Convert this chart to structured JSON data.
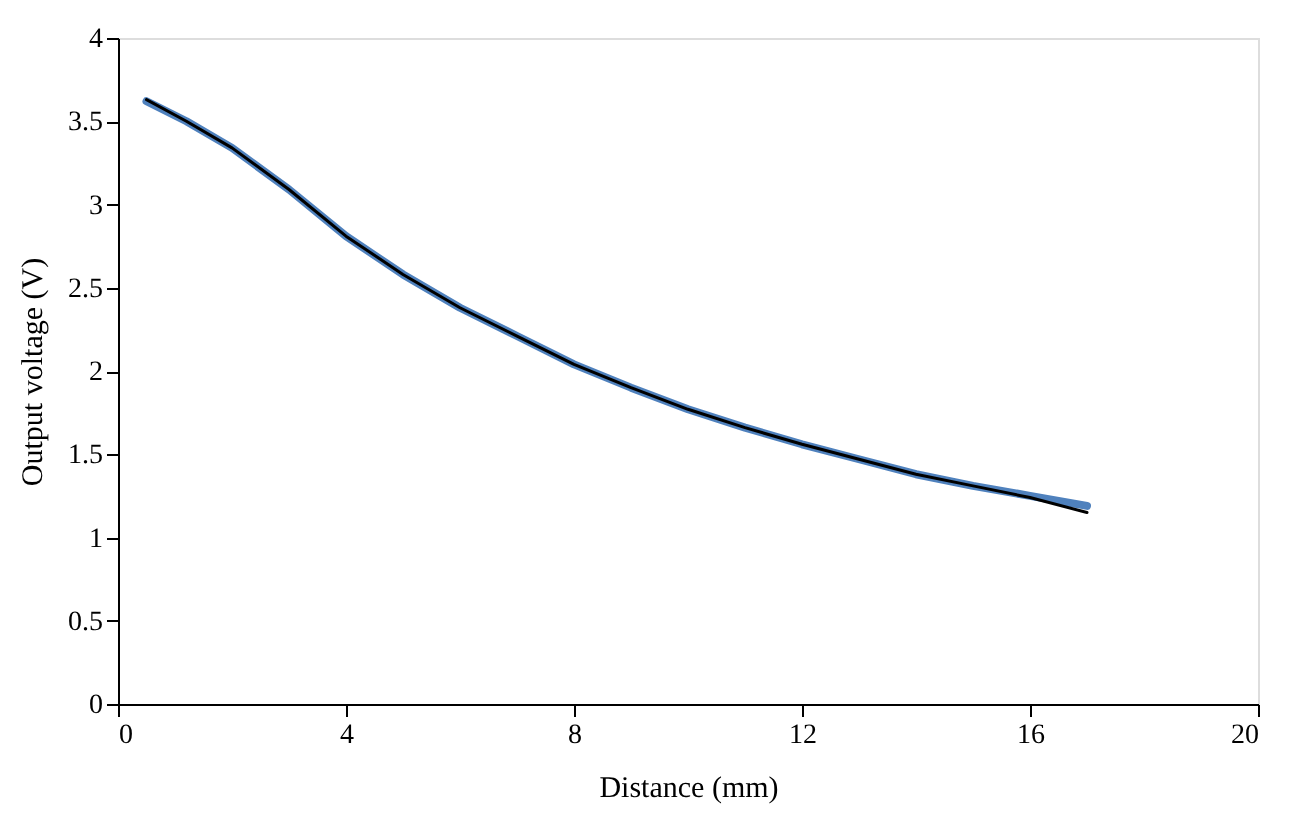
{
  "chart_data": {
    "type": "line",
    "xlabel": "Distance (mm)",
    "ylabel": "Output voltage (V)",
    "x": [
      0.5,
      1.2,
      2,
      3,
      4,
      5,
      6,
      7,
      8,
      9,
      10,
      11,
      12,
      13,
      14,
      15,
      16,
      17
    ],
    "series": [
      {
        "color": "#4f81bd",
        "values": [
          3.62,
          3.5,
          3.34,
          3.09,
          2.81,
          2.58,
          2.38,
          2.21,
          2.04,
          1.9,
          1.77,
          1.66,
          1.56,
          1.47,
          1.38,
          1.31,
          1.25,
          1.19
        ]
      },
      {
        "color": "#000000",
        "values": [
          3.63,
          3.5,
          3.34,
          3.09,
          2.81,
          2.58,
          2.38,
          2.21,
          2.04,
          1.9,
          1.77,
          1.66,
          1.56,
          1.47,
          1.38,
          1.31,
          1.24,
          1.15
        ]
      }
    ],
    "xlim": [
      0,
      20
    ],
    "xticks": [
      0,
      4,
      8,
      12,
      16,
      20
    ],
    "ylim": [
      0,
      4
    ],
    "yticks": [
      0,
      0.5,
      1,
      1.5,
      2,
      2.5,
      3,
      3.5,
      4
    ],
    "grid": false,
    "marker": "none",
    "line_style": "solid"
  }
}
